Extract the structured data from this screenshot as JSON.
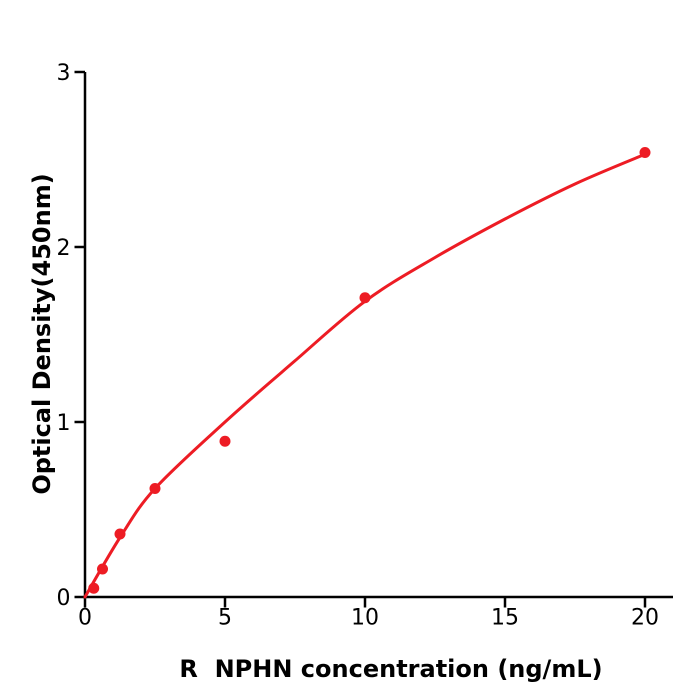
{
  "figure": {
    "background": "#ffffff"
  },
  "chart_data": {
    "type": "scatter",
    "title": "",
    "xlabel": "R  NPHN concentration (ng/mL)",
    "ylabel": "Optical Density(450nm)",
    "x_ticks": [
      "0",
      "5",
      "10",
      "15",
      "20"
    ],
    "x_tick_values": [
      0,
      5,
      10,
      15,
      20
    ],
    "y_ticks": [
      "0",
      "1",
      "2",
      "3"
    ],
    "y_tick_values": [
      0,
      1,
      2,
      3
    ],
    "xlim": [
      0,
      21
    ],
    "ylim": [
      0,
      3
    ],
    "grid": false,
    "legend": "none",
    "series_color": "#ED1C24",
    "axis_color": "#000000",
    "points": {
      "x": [
        0.3125,
        0.625,
        1.25,
        2.5,
        5,
        10,
        20
      ],
      "y": [
        0.05,
        0.16,
        0.36,
        0.62,
        0.89,
        1.71,
        2.54
      ]
    },
    "fit_curve": {
      "x": [
        0,
        1.25,
        2.5,
        5,
        7.5,
        10,
        12.5,
        15,
        17.5,
        20
      ],
      "y": [
        0,
        0.34,
        0.62,
        1.0,
        1.35,
        1.69,
        1.94,
        2.16,
        2.36,
        2.53
      ]
    }
  }
}
